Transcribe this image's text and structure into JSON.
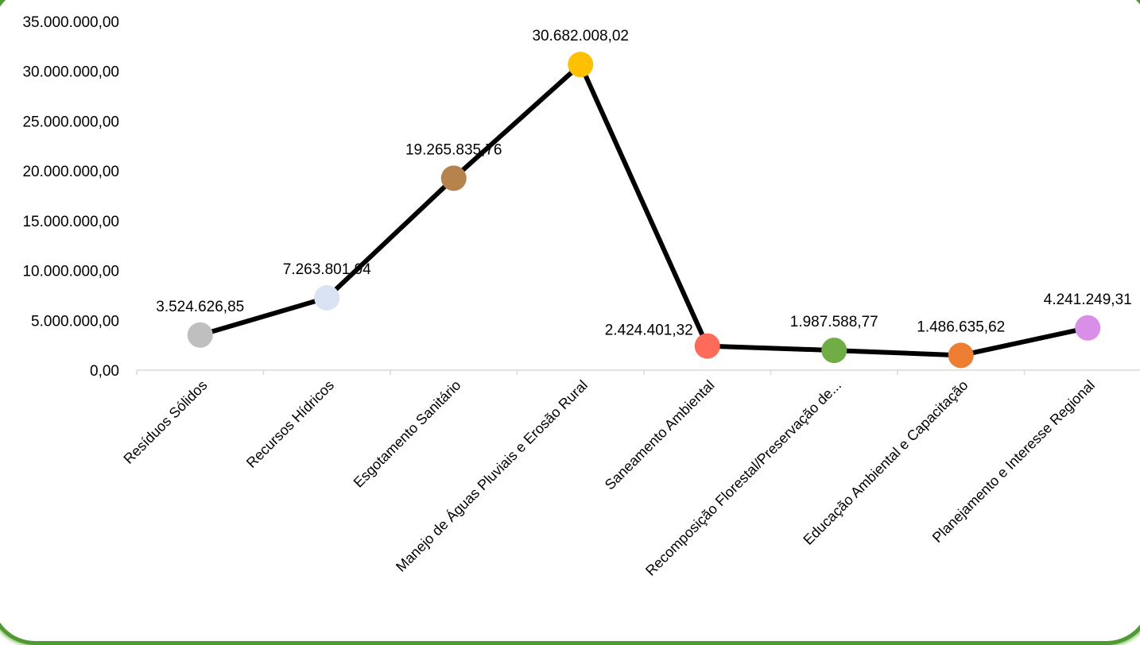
{
  "chart_data": {
    "type": "line",
    "title": "",
    "xlabel": "",
    "ylabel": "",
    "ylim": [
      0,
      35000000
    ],
    "ytick_values": [
      0,
      5000000,
      10000000,
      15000000,
      20000000,
      25000000,
      30000000,
      35000000
    ],
    "ytick_labels": [
      "0,00",
      "5.000.000,00",
      "10.000.000,00",
      "15.000.000,00",
      "20.000.000,00",
      "25.000.000,00",
      "30.000.000,00",
      "35.000.000,00"
    ],
    "grid": false,
    "line_color": "#000000",
    "categories": [
      "Resíduos Sólidos",
      "Recursos Hídricos",
      "Esgotamento Sanitário",
      "Manejo de Águas Pluviais e Erosão Rural",
      "Saneamento Ambiental",
      "Recomposição Florestal/Preservação de...",
      "Educação Ambiental e Capacitação",
      "Planejamento e Interesse Regional"
    ],
    "values": [
      3524626.85,
      7263801.94,
      19265835.76,
      30682008.02,
      2424401.32,
      1987588.77,
      1486635.62,
      4241249.31
    ],
    "data_labels": [
      "3.524.626,85",
      "7.263.801,94",
      "19.265.835,76",
      "30.682.008,02",
      "2.424.401,32",
      "1.987.588,77",
      "1.486.635,62",
      "4.241.249,31"
    ],
    "marker_colors": [
      "#bfbfbf",
      "#dae3f3",
      "#b5834b",
      "#ffc000",
      "#ff6b5b",
      "#70ad47",
      "#ed7d31",
      "#d98ee8"
    ]
  },
  "frame": {
    "border_color": "#4f9a33"
  }
}
